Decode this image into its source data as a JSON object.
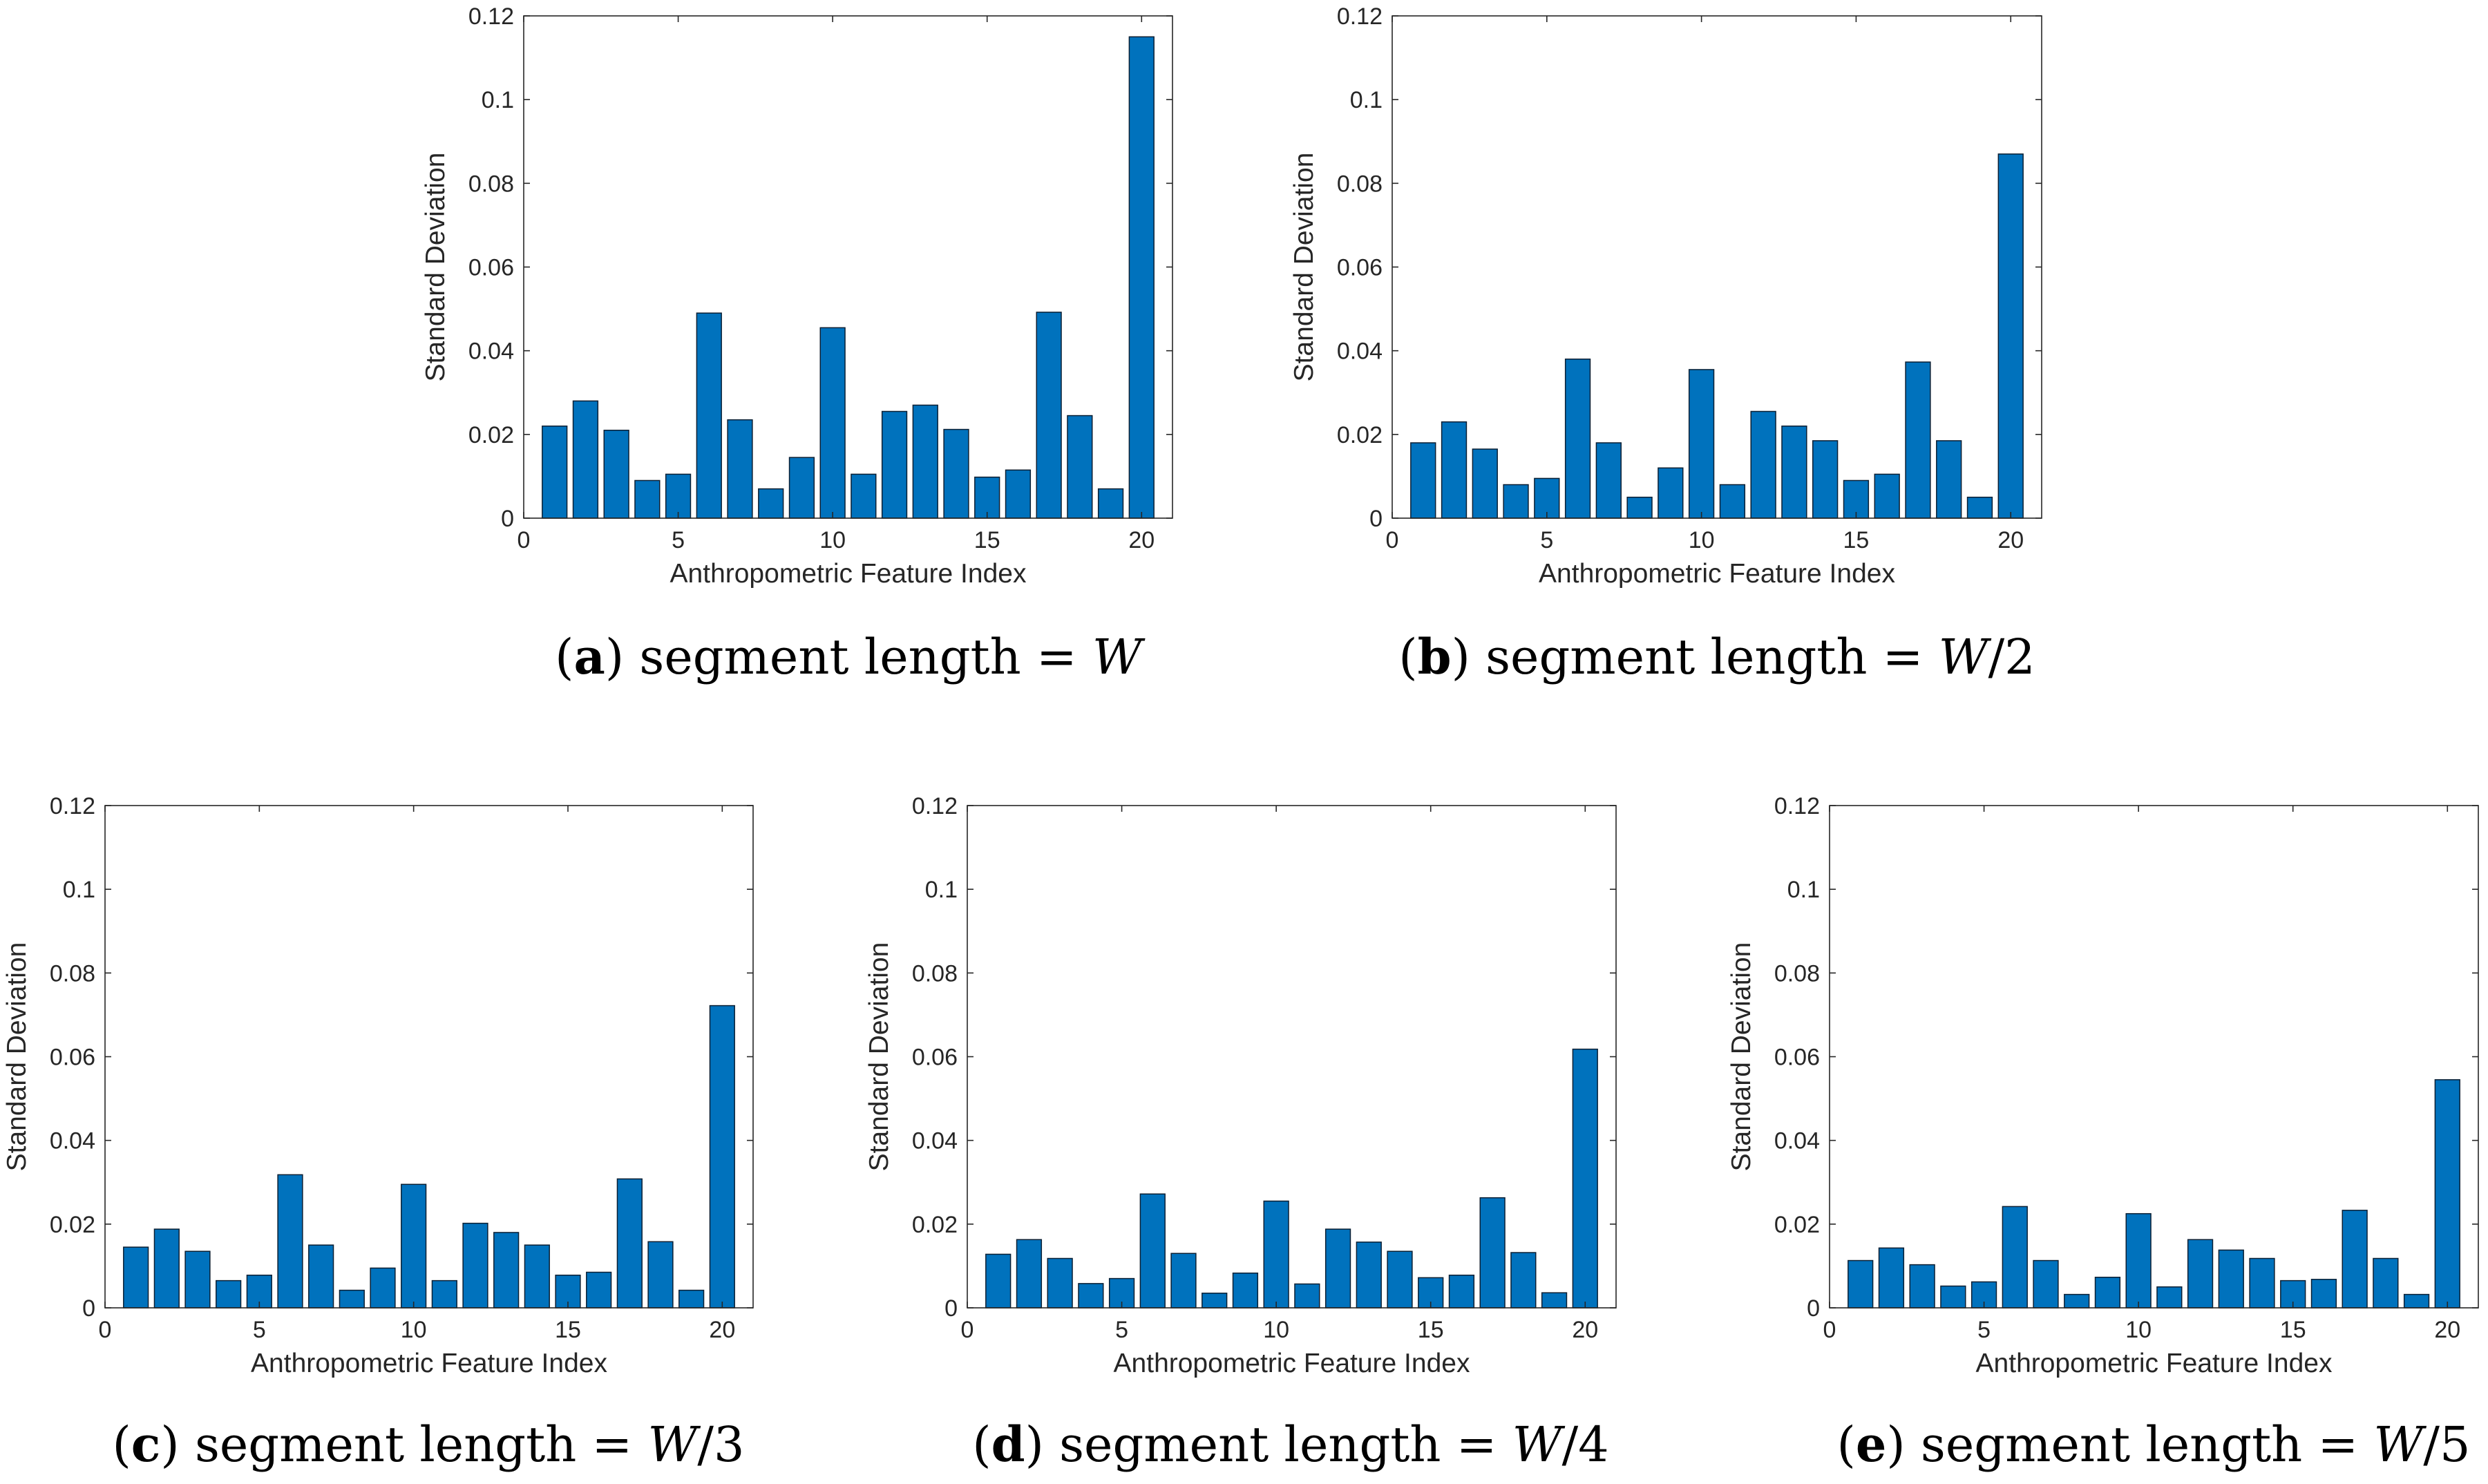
{
  "colors": {
    "bar": "#0072BD",
    "bar_edge": "#0b1f33",
    "axis": "#262626"
  },
  "chart_data": [
    {
      "id": "a",
      "type": "bar",
      "x": [
        1,
        2,
        3,
        4,
        5,
        6,
        7,
        8,
        9,
        10,
        11,
        12,
        13,
        14,
        15,
        16,
        17,
        18,
        19,
        20
      ],
      "values": [
        0.022,
        0.028,
        0.021,
        0.009,
        0.0105,
        0.049,
        0.0235,
        0.007,
        0.0145,
        0.0455,
        0.0105,
        0.0255,
        0.027,
        0.0212,
        0.0098,
        0.0115,
        0.0492,
        0.0245,
        0.007,
        0.115
      ],
      "xlim": [
        0,
        21
      ],
      "ylim": [
        0,
        0.12
      ],
      "xticks": [
        "0",
        "5",
        "10",
        "15",
        "20"
      ],
      "xtick_values": [
        0,
        5,
        10,
        15,
        20
      ],
      "yticks": [
        "0",
        "0.02",
        "0.04",
        "0.06",
        "0.08",
        "0.1",
        "0.12"
      ],
      "ytick_values": [
        0,
        0.02,
        0.04,
        0.06,
        0.08,
        0.1,
        0.12
      ],
      "xlabel": "Anthropometric Feature Index",
      "ylabel": "Standard Deviation",
      "caption": {
        "open": "(",
        "letter": "a",
        "close": ")",
        "text": " segment length = ",
        "var": "W",
        "suffix": ""
      }
    },
    {
      "id": "b",
      "type": "bar",
      "x": [
        1,
        2,
        3,
        4,
        5,
        6,
        7,
        8,
        9,
        10,
        11,
        12,
        13,
        14,
        15,
        16,
        17,
        18,
        19,
        20
      ],
      "values": [
        0.018,
        0.023,
        0.0165,
        0.008,
        0.0095,
        0.038,
        0.018,
        0.005,
        0.012,
        0.0355,
        0.008,
        0.0255,
        0.022,
        0.0185,
        0.009,
        0.0105,
        0.0373,
        0.0185,
        0.005,
        0.087
      ],
      "xlim": [
        0,
        21
      ],
      "ylim": [
        0,
        0.12
      ],
      "xticks": [
        "0",
        "5",
        "10",
        "15",
        "20"
      ],
      "xtick_values": [
        0,
        5,
        10,
        15,
        20
      ],
      "yticks": [
        "0",
        "0.02",
        "0.04",
        "0.06",
        "0.08",
        "0.1",
        "0.12"
      ],
      "ytick_values": [
        0,
        0.02,
        0.04,
        0.06,
        0.08,
        0.1,
        0.12
      ],
      "xlabel": "Anthropometric Feature Index",
      "ylabel": "Standard Deviation",
      "caption": {
        "open": "(",
        "letter": "b",
        "close": ")",
        "text": " segment length = ",
        "var": "W",
        "suffix": "/2"
      }
    },
    {
      "id": "c",
      "type": "bar",
      "x": [
        1,
        2,
        3,
        4,
        5,
        6,
        7,
        8,
        9,
        10,
        11,
        12,
        13,
        14,
        15,
        16,
        17,
        18,
        19,
        20
      ],
      "values": [
        0.0145,
        0.0188,
        0.0135,
        0.0065,
        0.0078,
        0.0318,
        0.015,
        0.0042,
        0.0095,
        0.0295,
        0.0065,
        0.0202,
        0.018,
        0.015,
        0.0078,
        0.0085,
        0.0308,
        0.0158,
        0.0042,
        0.0722
      ],
      "xlim": [
        0,
        21
      ],
      "ylim": [
        0,
        0.12
      ],
      "xticks": [
        "0",
        "5",
        "10",
        "15",
        "20"
      ],
      "xtick_values": [
        0,
        5,
        10,
        15,
        20
      ],
      "yticks": [
        "0",
        "0.02",
        "0.04",
        "0.06",
        "0.08",
        "0.1",
        "0.12"
      ],
      "ytick_values": [
        0,
        0.02,
        0.04,
        0.06,
        0.08,
        0.1,
        0.12
      ],
      "xlabel": "Anthropometric Feature Index",
      "ylabel": "Standard Deviation",
      "caption": {
        "open": "(",
        "letter": "c",
        "close": ")",
        "text": " segment length = ",
        "var": "W",
        "suffix": "/3"
      }
    },
    {
      "id": "d",
      "type": "bar",
      "x": [
        1,
        2,
        3,
        4,
        5,
        6,
        7,
        8,
        9,
        10,
        11,
        12,
        13,
        14,
        15,
        16,
        17,
        18,
        19,
        20
      ],
      "values": [
        0.0128,
        0.0163,
        0.0118,
        0.0058,
        0.007,
        0.0272,
        0.013,
        0.0035,
        0.0083,
        0.0255,
        0.0057,
        0.0188,
        0.0157,
        0.0135,
        0.0072,
        0.0078,
        0.0263,
        0.0132,
        0.0036,
        0.0618
      ],
      "xlim": [
        0,
        21
      ],
      "ylim": [
        0,
        0.12
      ],
      "xticks": [
        "0",
        "5",
        "10",
        "15",
        "20"
      ],
      "xtick_values": [
        0,
        5,
        10,
        15,
        20
      ],
      "yticks": [
        "0",
        "0.02",
        "0.04",
        "0.06",
        "0.08",
        "0.1",
        "0.12"
      ],
      "ytick_values": [
        0,
        0.02,
        0.04,
        0.06,
        0.08,
        0.1,
        0.12
      ],
      "xlabel": "Anthropometric Feature Index",
      "ylabel": "Standard Deviation",
      "caption": {
        "open": "(",
        "letter": "d",
        "close": ")",
        "text": " segment length = ",
        "var": "W",
        "suffix": "/4"
      }
    },
    {
      "id": "e",
      "type": "bar",
      "x": [
        1,
        2,
        3,
        4,
        5,
        6,
        7,
        8,
        9,
        10,
        11,
        12,
        13,
        14,
        15,
        16,
        17,
        18,
        19,
        20
      ],
      "values": [
        0.0113,
        0.0143,
        0.0103,
        0.0052,
        0.0062,
        0.0242,
        0.0113,
        0.0032,
        0.0073,
        0.0225,
        0.005,
        0.0163,
        0.0138,
        0.0118,
        0.0065,
        0.0068,
        0.0233,
        0.0118,
        0.0032,
        0.0545
      ],
      "xlim": [
        0,
        21
      ],
      "ylim": [
        0,
        0.12
      ],
      "xticks": [
        "0",
        "5",
        "10",
        "15",
        "20"
      ],
      "xtick_values": [
        0,
        5,
        10,
        15,
        20
      ],
      "yticks": [
        "0",
        "0.02",
        "0.04",
        "0.06",
        "0.08",
        "0.1",
        "0.12"
      ],
      "ytick_values": [
        0,
        0.02,
        0.04,
        0.06,
        0.08,
        0.1,
        0.12
      ],
      "xlabel": "Anthropometric Feature Index",
      "ylabel": "Standard Deviation",
      "caption": {
        "open": "(",
        "letter": "e",
        "close": ")",
        "text": " segment length = ",
        "var": "W",
        "suffix": "/5"
      }
    }
  ]
}
